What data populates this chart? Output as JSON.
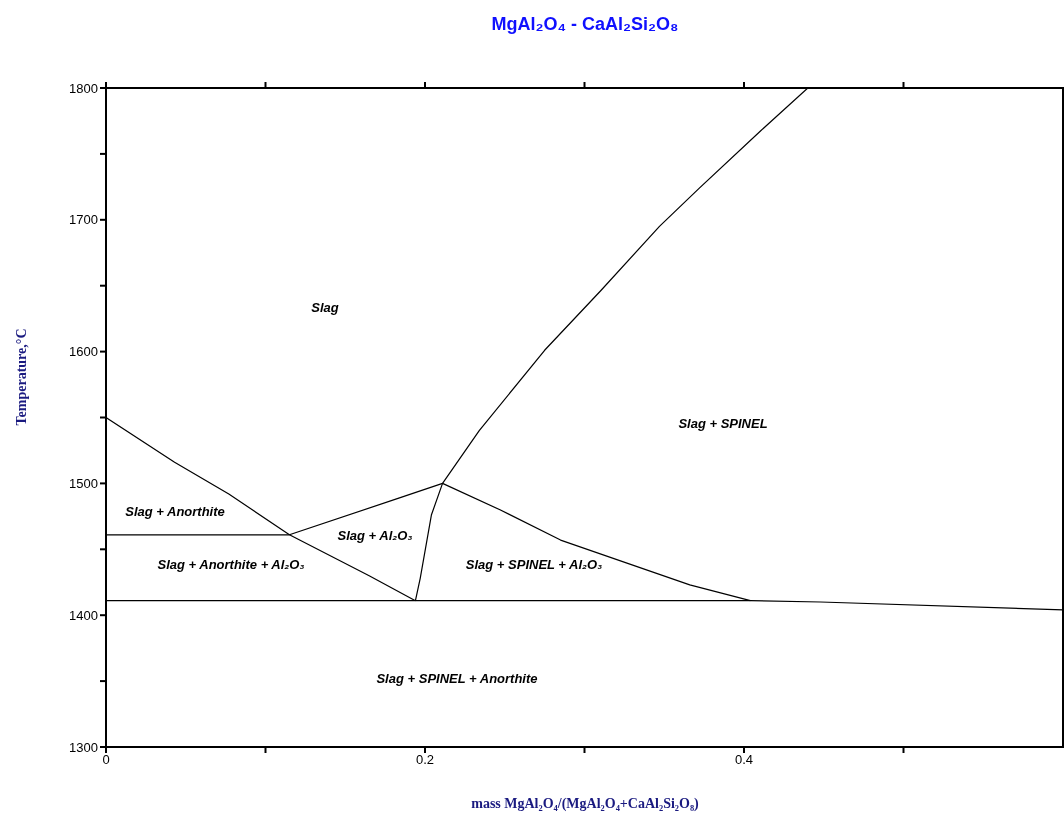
{
  "chart_data": {
    "type": "line",
    "title": "MgAl₂O₄ - CaAl₂Si₂O₈",
    "xlabel": "mass MgAl₂O₄/(MgAl₂O₄+CaAl₂Si₂O₈)",
    "ylabel": "Temperature,°C",
    "marker": "none",
    "xlim": [
      0,
      0.6
    ],
    "xticks": [
      0,
      {
        "value": 0.1,
        "label": null
      },
      0.2,
      {
        "value": 0.3,
        "label": null
      },
      0.4,
      {
        "value": 0.5,
        "label": null
      }
    ],
    "ylim": [
      1300,
      1800
    ],
    "yticks": [
      1300,
      {
        "value": 1350,
        "label": null
      },
      1400,
      {
        "value": 1450,
        "label": null
      },
      1500,
      {
        "value": 1550,
        "label": null
      },
      1600,
      {
        "value": 1650,
        "label": null
      },
      1700,
      {
        "value": 1750,
        "label": null
      },
      1800
    ],
    "series": [
      {
        "color": "#000000",
        "x": [
          0,
          0.043,
          0.077,
          0.115,
          0.165,
          0.194
        ],
        "values": [
          1550,
          1516,
          1492,
          1461,
          1430,
          1411
        ]
      },
      {
        "color": "#000000",
        "x": [
          0,
          0.115,
          0.184,
          0.211
        ],
        "values": [
          1461,
          1461,
          1489,
          1500
        ]
      },
      {
        "color": "#000000",
        "x": [
          0.44,
          0.41,
          0.372,
          0.347,
          0.31,
          0.275,
          0.234,
          0.211,
          0.204,
          0.197,
          0.194
        ],
        "values": [
          1800,
          1767,
          1724,
          1695,
          1646,
          1601,
          1540,
          1500,
          1476,
          1428,
          1411
        ]
      },
      {
        "color": "#000000",
        "x": [
          0.211,
          0.247,
          0.285,
          0.366,
          0.404
        ],
        "values": [
          1500,
          1480,
          1457,
          1423,
          1411
        ]
      },
      {
        "color": "#000000",
        "x": [
          0,
          0.404,
          0.448,
          0.6
        ],
        "values": [
          1411,
          1411,
          1410,
          1404
        ]
      }
    ],
    "annotations": [
      "Slag",
      "Slag + SPINEL",
      "Slag + Anorthite",
      "Slag + Al₂O₃",
      "Slag + Anorthite + Al₂O₃",
      "Slag + SPINEL + Al₂O₃",
      "Slag + SPINEL + Anorthite"
    ]
  }
}
